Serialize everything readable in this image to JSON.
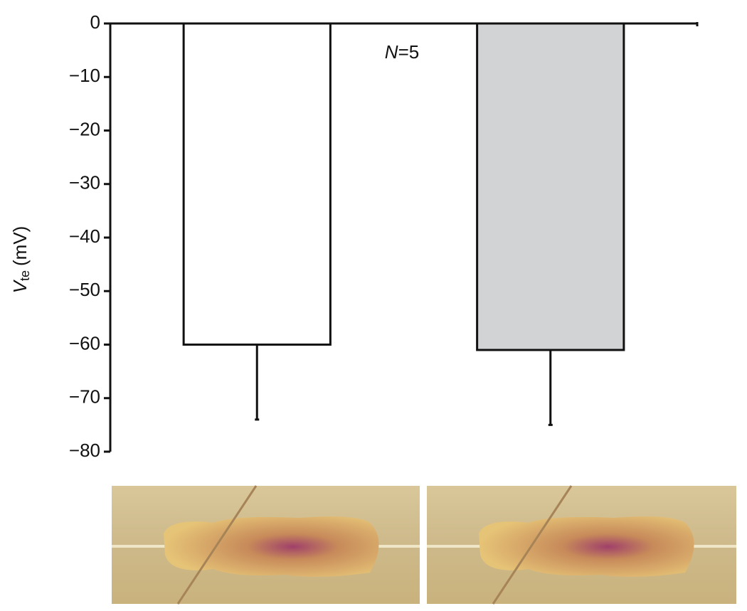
{
  "chart_data": {
    "type": "bar",
    "ylabel": {
      "symbol": "V",
      "subscript": "te",
      "unit": "(mV)"
    },
    "annotation": {
      "variable": "N",
      "text": "=5"
    },
    "categories": [
      null,
      null
    ],
    "values": [
      -60,
      -61
    ],
    "errors": [
      14,
      14
    ],
    "colors": [
      "#ffffff",
      "#d1d3d4"
    ],
    "ylim": [
      -80,
      0
    ],
    "yticks": [
      0,
      {
        "value": -10,
        "label": "−10"
      },
      {
        "value": -20,
        "label": "−20"
      },
      {
        "value": -30,
        "label": "−30"
      },
      {
        "value": -40,
        "label": "−40"
      },
      {
        "value": -50,
        "label": "−50"
      },
      {
        "value": -60,
        "label": "−60"
      },
      {
        "value": -70,
        "label": "−70"
      },
      {
        "value": -80,
        "label": "−80"
      }
    ],
    "grid": false
  }
}
